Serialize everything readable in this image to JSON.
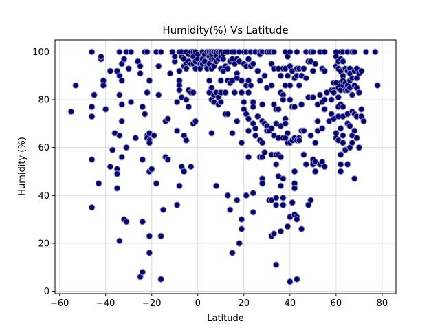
{
  "chart_data": {
    "type": "scatter",
    "title": "Humidity(%) Vs Latitude",
    "xlabel": "Latitude",
    "ylabel": "Humidity (%)",
    "xlim": [
      -62,
      86
    ],
    "ylim": [
      -1,
      105
    ],
    "xticks": [
      -60,
      -40,
      -20,
      0,
      20,
      40,
      60,
      80
    ],
    "yticks": [
      0,
      20,
      40,
      60,
      80,
      100
    ],
    "grid": true,
    "marker_fill": "#000080",
    "marker_edge": "#9e9e9e",
    "points": [
      [
        -55,
        75
      ],
      [
        -53,
        86
      ],
      [
        -46,
        100
      ],
      [
        -46,
        77
      ],
      [
        -46,
        73
      ],
      [
        -46,
        55
      ],
      [
        -46,
        35
      ],
      [
        -45,
        82
      ],
      [
        -43,
        45
      ],
      [
        -42,
        97
      ],
      [
        -42,
        98
      ],
      [
        -41,
        88
      ],
      [
        -41,
        86
      ],
      [
        -40,
        76
      ],
      [
        -38,
        92
      ],
      [
        -38,
        52
      ],
      [
        -37,
        59
      ],
      [
        -36,
        66
      ],
      [
        -35,
        92
      ],
      [
        -35,
        51
      ],
      [
        -35,
        49
      ],
      [
        -35,
        43
      ],
      [
        -34,
        100
      ],
      [
        -34,
        90
      ],
      [
        -34,
        82
      ],
      [
        -34,
        65
      ],
      [
        -34,
        21
      ],
      [
        -33,
        95
      ],
      [
        -33,
        88
      ],
      [
        -33,
        78
      ],
      [
        -33,
        71
      ],
      [
        -33,
        56
      ],
      [
        -32,
        97
      ],
      [
        -32,
        30
      ],
      [
        -31,
        100
      ],
      [
        -31,
        60
      ],
      [
        -31,
        29
      ],
      [
        -30,
        93
      ],
      [
        -29,
        100
      ],
      [
        -29,
        79
      ],
      [
        -27,
        64
      ],
      [
        -26,
        96
      ],
      [
        -25,
        91
      ],
      [
        -25,
        94
      ],
      [
        -25,
        6
      ],
      [
        -24,
        77
      ],
      [
        -24,
        55
      ],
      [
        -24,
        29
      ],
      [
        -24,
        8
      ],
      [
        -23,
        100
      ],
      [
        -23,
        74
      ],
      [
        -22,
        100
      ],
      [
        -22,
        83
      ],
      [
        -22,
        65
      ],
      [
        -22,
        64
      ],
      [
        -21,
        88
      ],
      [
        -21,
        66
      ],
      [
        -21,
        63
      ],
      [
        -21,
        62
      ],
      [
        -21,
        50
      ],
      [
        -21,
        23
      ],
      [
        -21,
        16
      ],
      [
        -20,
        51
      ],
      [
        -19,
        65
      ],
      [
        -18,
        100
      ],
      [
        -18,
        45
      ],
      [
        -17,
        94
      ],
      [
        -17,
        82
      ],
      [
        -16,
        100
      ],
      [
        -16,
        23
      ],
      [
        -16,
        5
      ],
      [
        -15,
        34
      ],
      [
        -14,
        71
      ],
      [
        -14,
        56
      ],
      [
        -13,
        55
      ],
      [
        -13,
        72
      ],
      [
        -12,
        91
      ],
      [
        -11,
        100
      ],
      [
        -10,
        96
      ],
      [
        -10,
        98
      ],
      [
        -9,
        79
      ],
      [
        -9,
        67
      ],
      [
        -9,
        36
      ],
      [
        -8,
        100
      ],
      [
        -8,
        92
      ],
      [
        -8,
        88
      ],
      [
        -8,
        86
      ],
      [
        -8,
        84
      ],
      [
        -8,
        44
      ],
      [
        -7,
        98
      ],
      [
        -7,
        100
      ],
      [
        -7,
        81
      ],
      [
        -7,
        52
      ],
      [
        -6,
        97
      ],
      [
        -6,
        94
      ],
      [
        -6,
        65
      ],
      [
        -6,
        50
      ],
      [
        -5,
        100
      ],
      [
        -5,
        95
      ],
      [
        -5,
        93
      ],
      [
        -5,
        80
      ],
      [
        -5,
        63
      ],
      [
        -4,
        99
      ],
      [
        -4,
        96
      ],
      [
        -4,
        84
      ],
      [
        -4,
        77
      ],
      [
        -3,
        100
      ],
      [
        -3,
        95
      ],
      [
        -3,
        83
      ],
      [
        -3,
        52
      ],
      [
        -2,
        100
      ],
      [
        -2,
        98
      ],
      [
        -2,
        95
      ],
      [
        -2,
        83
      ],
      [
        -2,
        70
      ],
      [
        -1,
        100
      ],
      [
        -1,
        96
      ],
      [
        -1,
        93
      ],
      [
        -1,
        71
      ],
      [
        0,
        99
      ],
      [
        0,
        97
      ],
      [
        1,
        95
      ],
      [
        1,
        93
      ],
      [
        2,
        100
      ],
      [
        2,
        97
      ],
      [
        2,
        95
      ],
      [
        3,
        99
      ],
      [
        3,
        96
      ],
      [
        4,
        100
      ],
      [
        4,
        94
      ],
      [
        4,
        93
      ],
      [
        5,
        100
      ],
      [
        5,
        98
      ],
      [
        5,
        95
      ],
      [
        5,
        88
      ],
      [
        5,
        83
      ],
      [
        6,
        100
      ],
      [
        6,
        99
      ],
      [
        6,
        97
      ],
      [
        6,
        93
      ],
      [
        6,
        85
      ],
      [
        6,
        80
      ],
      [
        6,
        66
      ],
      [
        7,
        100
      ],
      [
        7,
        97
      ],
      [
        7,
        94
      ],
      [
        7,
        82
      ],
      [
        7,
        79
      ],
      [
        8,
        100
      ],
      [
        8,
        98
      ],
      [
        8,
        96
      ],
      [
        8,
        83
      ],
      [
        8,
        44
      ],
      [
        9,
        100
      ],
      [
        9,
        97
      ],
      [
        9,
        81
      ],
      [
        9,
        78
      ],
      [
        10,
        100
      ],
      [
        10,
        98
      ],
      [
        10,
        93
      ],
      [
        10,
        88
      ],
      [
        10,
        83
      ],
      [
        10,
        79
      ],
      [
        11,
        99
      ],
      [
        11,
        97
      ],
      [
        11,
        92
      ],
      [
        12,
        100
      ],
      [
        12,
        94
      ],
      [
        12,
        83
      ],
      [
        12,
        74
      ],
      [
        13,
        100
      ],
      [
        13,
        93
      ],
      [
        13,
        88
      ],
      [
        13,
        74
      ],
      [
        13,
        40
      ],
      [
        14,
        96
      ],
      [
        14,
        87
      ],
      [
        14,
        34
      ],
      [
        15,
        100
      ],
      [
        15,
        97
      ],
      [
        15,
        88
      ],
      [
        15,
        66
      ],
      [
        15,
        16
      ],
      [
        16,
        100
      ],
      [
        16,
        95
      ],
      [
        16,
        83
      ],
      [
        17,
        97
      ],
      [
        17,
        91
      ],
      [
        17,
        89
      ],
      [
        17,
        71
      ],
      [
        17,
        38
      ],
      [
        18,
        100
      ],
      [
        18,
        96
      ],
      [
        18,
        20
      ],
      [
        19,
        88
      ],
      [
        19,
        83
      ],
      [
        19,
        62
      ],
      [
        19,
        30
      ],
      [
        19,
        26
      ],
      [
        20,
        100
      ],
      [
        20,
        95
      ],
      [
        20,
        79
      ],
      [
        20,
        76
      ],
      [
        21,
        100
      ],
      [
        21,
        94
      ],
      [
        21,
        86
      ],
      [
        21,
        74
      ],
      [
        21,
        40
      ],
      [
        22,
        97
      ],
      [
        22,
        88
      ],
      [
        22,
        83
      ],
      [
        22,
        72
      ],
      [
        22,
        67
      ],
      [
        22,
        56
      ],
      [
        23,
        100
      ],
      [
        23,
        94
      ],
      [
        23,
        86
      ],
      [
        24,
        95
      ],
      [
        24,
        79
      ],
      [
        24,
        77
      ],
      [
        24,
        70
      ],
      [
        24,
        41
      ],
      [
        24,
        33
      ],
      [
        25,
        100
      ],
      [
        25,
        68
      ],
      [
        25,
        65
      ],
      [
        26,
        92
      ],
      [
        26,
        73
      ],
      [
        27,
        100
      ],
      [
        27,
        99
      ],
      [
        27,
        88
      ],
      [
        27,
        63
      ],
      [
        27,
        56
      ],
      [
        28,
        100
      ],
      [
        28,
        78
      ],
      [
        28,
        71
      ],
      [
        28,
        62
      ],
      [
        28,
        56
      ],
      [
        28,
        47
      ],
      [
        28,
        45
      ],
      [
        29,
        90
      ],
      [
        29,
        70
      ],
      [
        29,
        58
      ],
      [
        30,
        100
      ],
      [
        30,
        85
      ],
      [
        30,
        69
      ],
      [
        30,
        67
      ],
      [
        31,
        100
      ],
      [
        31,
        67
      ],
      [
        31,
        38
      ],
      [
        32,
        100
      ],
      [
        32,
        95
      ],
      [
        32,
        86
      ],
      [
        32,
        68
      ],
      [
        32,
        57
      ],
      [
        32,
        38
      ],
      [
        32,
        23
      ],
      [
        33,
        100
      ],
      [
        33,
        93
      ],
      [
        33,
        78
      ],
      [
        33,
        65
      ],
      [
        33,
        24
      ],
      [
        34,
        76
      ],
      [
        34,
        70
      ],
      [
        34,
        57
      ],
      [
        34,
        53
      ],
      [
        34,
        39
      ],
      [
        34,
        36
      ],
      [
        34,
        11
      ],
      [
        35,
        93
      ],
      [
        35,
        76
      ],
      [
        35,
        64
      ],
      [
        35,
        57
      ],
      [
        35,
        48
      ],
      [
        36,
        90
      ],
      [
        36,
        83
      ],
      [
        36,
        69
      ],
      [
        36,
        56
      ],
      [
        36,
        44
      ],
      [
        36,
        25
      ],
      [
        37,
        93
      ],
      [
        37,
        82
      ],
      [
        37,
        80
      ],
      [
        37,
        64
      ],
      [
        37,
        47
      ],
      [
        37,
        39
      ],
      [
        37,
        36
      ],
      [
        38,
        100
      ],
      [
        38,
        93
      ],
      [
        38,
        86
      ],
      [
        38,
        72
      ],
      [
        38,
        70
      ],
      [
        38,
        64
      ],
      [
        39,
        98
      ],
      [
        39,
        90
      ],
      [
        39,
        66
      ],
      [
        39,
        62
      ],
      [
        39,
        27
      ],
      [
        40,
        100
      ],
      [
        40,
        94
      ],
      [
        40,
        86
      ],
      [
        40,
        80
      ],
      [
        40,
        62
      ],
      [
        40,
        31
      ],
      [
        40,
        4
      ],
      [
        41,
        92
      ],
      [
        41,
        77
      ],
      [
        41,
        63
      ],
      [
        41,
        37
      ],
      [
        42,
        89
      ],
      [
        42,
        77
      ],
      [
        42,
        64
      ],
      [
        42,
        50
      ],
      [
        42,
        45
      ],
      [
        42,
        43
      ],
      [
        42,
        32
      ],
      [
        43,
        100
      ],
      [
        43,
        93
      ],
      [
        43,
        90
      ],
      [
        43,
        63
      ],
      [
        43,
        31
      ],
      [
        43,
        30
      ],
      [
        43,
        5
      ],
      [
        44,
        93
      ],
      [
        44,
        86
      ],
      [
        44,
        64
      ],
      [
        44,
        63
      ],
      [
        45,
        90
      ],
      [
        45,
        78
      ],
      [
        45,
        67
      ],
      [
        45,
        26
      ],
      [
        46,
        93
      ],
      [
        46,
        67
      ],
      [
        46,
        57
      ],
      [
        47,
        100
      ],
      [
        47,
        89
      ],
      [
        47,
        53
      ],
      [
        48,
        96
      ],
      [
        48,
        81
      ],
      [
        48,
        36
      ],
      [
        49,
        100
      ],
      [
        49,
        96
      ],
      [
        49,
        65
      ],
      [
        49,
        38
      ],
      [
        50,
        100
      ],
      [
        50,
        92
      ],
      [
        50,
        81
      ],
      [
        50,
        55
      ],
      [
        50,
        53
      ],
      [
        51,
        95
      ],
      [
        51,
        62
      ],
      [
        51,
        54
      ],
      [
        51,
        50
      ],
      [
        52,
        78
      ],
      [
        52,
        71
      ],
      [
        52,
        67
      ],
      [
        53,
        100
      ],
      [
        53,
        82
      ],
      [
        53,
        53
      ],
      [
        53,
        53
      ],
      [
        54,
        93
      ],
      [
        54,
        79
      ],
      [
        54,
        68
      ],
      [
        54,
        54
      ],
      [
        55,
        100
      ],
      [
        55,
        92
      ],
      [
        55,
        80
      ],
      [
        55,
        76
      ],
      [
        55,
        52
      ],
      [
        56,
        83
      ],
      [
        57,
        71
      ],
      [
        58,
        84
      ],
      [
        58,
        80
      ],
      [
        58,
        74
      ],
      [
        59,
        87
      ],
      [
        59,
        84
      ],
      [
        59,
        83
      ],
      [
        59,
        72
      ],
      [
        60,
        100
      ],
      [
        60,
        98
      ],
      [
        60,
        94
      ],
      [
        60,
        87
      ],
      [
        60,
        66
      ],
      [
        60,
        64
      ],
      [
        61,
        96
      ],
      [
        61,
        93
      ],
      [
        61,
        85
      ],
      [
        61,
        81
      ],
      [
        61,
        77
      ],
      [
        61,
        73
      ],
      [
        61,
        63
      ],
      [
        62,
        100
      ],
      [
        62,
        97
      ],
      [
        62,
        92
      ],
      [
        62,
        87
      ],
      [
        62,
        86
      ],
      [
        62,
        84
      ],
      [
        62,
        78
      ],
      [
        62,
        68
      ],
      [
        62,
        57
      ],
      [
        62,
        53
      ],
      [
        62,
        50
      ],
      [
        63,
        100
      ],
      [
        63,
        96
      ],
      [
        63,
        90
      ],
      [
        63,
        88
      ],
      [
        63,
        86
      ],
      [
        63,
        77
      ],
      [
        63,
        73
      ],
      [
        63,
        65
      ],
      [
        63,
        62
      ],
      [
        64,
        93
      ],
      [
        64,
        87
      ],
      [
        64,
        84
      ],
      [
        64,
        59
      ],
      [
        65,
        100
      ],
      [
        65,
        92
      ],
      [
        65,
        86
      ],
      [
        65,
        84
      ],
      [
        65,
        74
      ],
      [
        65,
        70
      ],
      [
        65,
        53
      ],
      [
        66,
        93
      ],
      [
        66,
        91
      ],
      [
        66,
        88
      ],
      [
        66,
        85
      ],
      [
        66,
        69
      ],
      [
        66,
        60
      ],
      [
        67,
        100
      ],
      [
        67,
        89
      ],
      [
        67,
        82
      ],
      [
        67,
        75
      ],
      [
        67,
        65
      ],
      [
        67,
        62
      ],
      [
        68,
        100
      ],
      [
        68,
        92
      ],
      [
        68,
        86
      ],
      [
        68,
        74
      ],
      [
        68,
        67
      ],
      [
        68,
        47
      ],
      [
        69,
        93
      ],
      [
        69,
        89
      ],
      [
        69,
        85
      ],
      [
        69,
        73
      ],
      [
        69,
        64
      ],
      [
        70,
        91
      ],
      [
        70,
        83
      ],
      [
        70,
        60
      ],
      [
        71,
        92
      ],
      [
        71,
        76
      ],
      [
        71,
        73
      ],
      [
        72,
        71
      ],
      [
        73,
        100
      ],
      [
        77,
        100
      ],
      [
        78,
        86
      ]
    ]
  }
}
